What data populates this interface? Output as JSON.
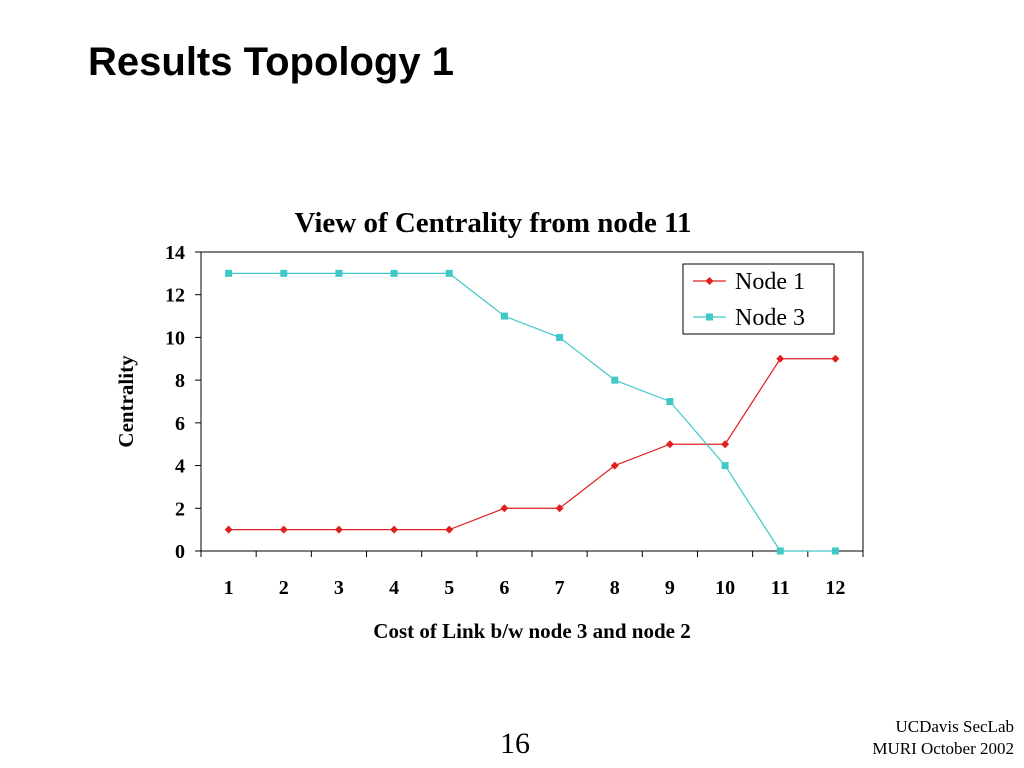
{
  "slide": {
    "title": "Results Topology 1",
    "page_number": "16",
    "footer_line1": "UCDavis SecLab",
    "footer_line2": "MURI October 2002"
  },
  "chart_data": {
    "type": "line",
    "title": "View of Centrality from node 11",
    "xlabel": "Cost of Link b/w node 3 and node 2",
    "ylabel": "Centrality",
    "categories": [
      "1",
      "2",
      "3",
      "4",
      "5",
      "6",
      "7",
      "8",
      "9",
      "10",
      "11",
      "12"
    ],
    "ylim": [
      0,
      14
    ],
    "yticks": [
      0,
      2,
      4,
      6,
      8,
      10,
      12,
      14
    ],
    "grid": false,
    "legend_position": "top-right",
    "series": [
      {
        "name": "Node 1",
        "color": "#e02020",
        "marker": "diamond",
        "values": [
          1,
          1,
          1,
          1,
          1,
          2,
          2,
          4,
          5,
          5,
          9,
          9
        ]
      },
      {
        "name": "Node 3",
        "color": "#40c8c8",
        "marker": "square",
        "values": [
          13,
          13,
          13,
          13,
          13,
          11,
          10,
          8,
          7,
          4,
          0,
          0
        ]
      }
    ]
  }
}
